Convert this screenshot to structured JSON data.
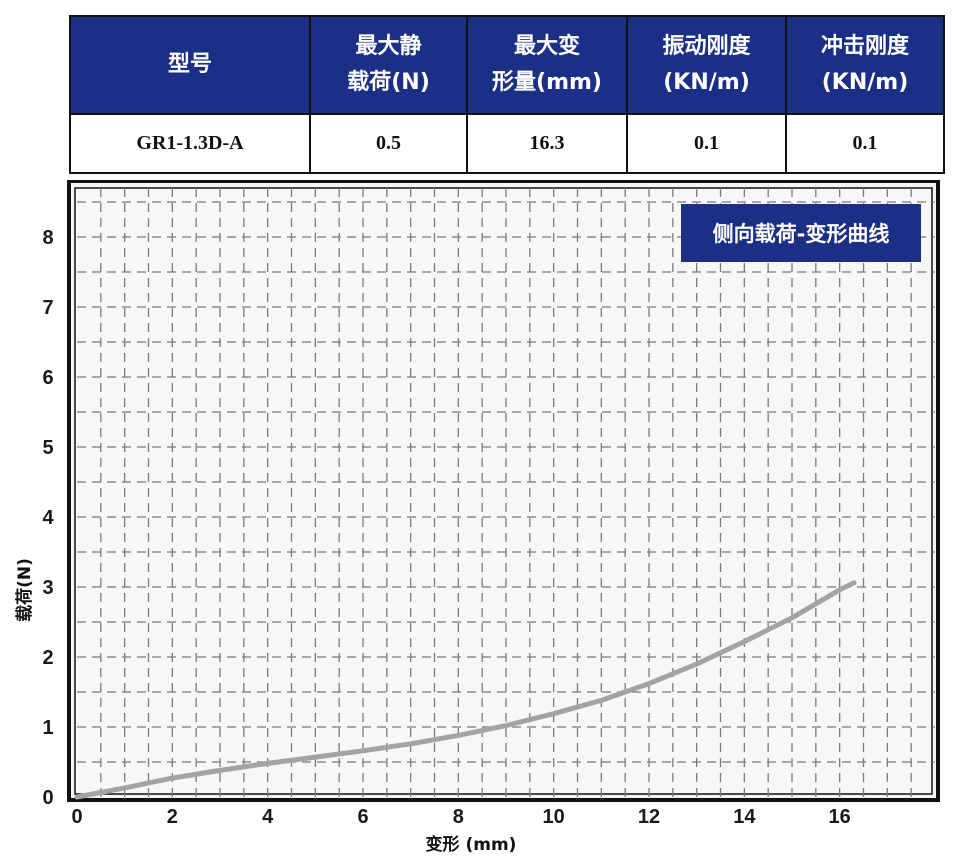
{
  "spec_table": {
    "headers": [
      [
        "型号"
      ],
      [
        "最大静",
        "载荷(N)"
      ],
      [
        "最大变",
        "形量(mm)"
      ],
      [
        "振动刚度",
        "(KN/m)"
      ],
      [
        "冲击刚度",
        "(KN/m)"
      ]
    ],
    "row": [
      "GR1-1.3D-A",
      "0.5",
      "16.3",
      "0.1",
      "0.1"
    ]
  },
  "colors": {
    "header_bg": "#1c2f86",
    "legend_bg": "#1c2f86",
    "curve": "#a3a3a3",
    "grid": "#7a7a7a"
  },
  "chart_data": {
    "type": "line",
    "title": "侧向载荷-变形曲线",
    "xlabel": "变形 (mm)",
    "ylabel": "载荷(N)",
    "xlim": [
      0,
      18
    ],
    "ylim": [
      0,
      8.7
    ],
    "xticks": [
      0,
      2,
      4,
      6,
      8,
      10,
      12,
      14,
      16
    ],
    "yticks": [
      0,
      1,
      2,
      3,
      4,
      5,
      6,
      7,
      8
    ],
    "grid": true,
    "legend_position": "top-right",
    "series": [
      {
        "x": [
          0,
          1,
          2,
          3,
          4,
          5,
          6,
          7,
          8,
          9,
          10,
          11,
          12,
          13,
          14,
          15,
          16,
          16.3
        ],
        "y": [
          0,
          0.13,
          0.27,
          0.38,
          0.48,
          0.57,
          0.66,
          0.76,
          0.88,
          1.02,
          1.19,
          1.38,
          1.62,
          1.9,
          2.22,
          2.56,
          2.96,
          3.06
        ]
      }
    ]
  }
}
